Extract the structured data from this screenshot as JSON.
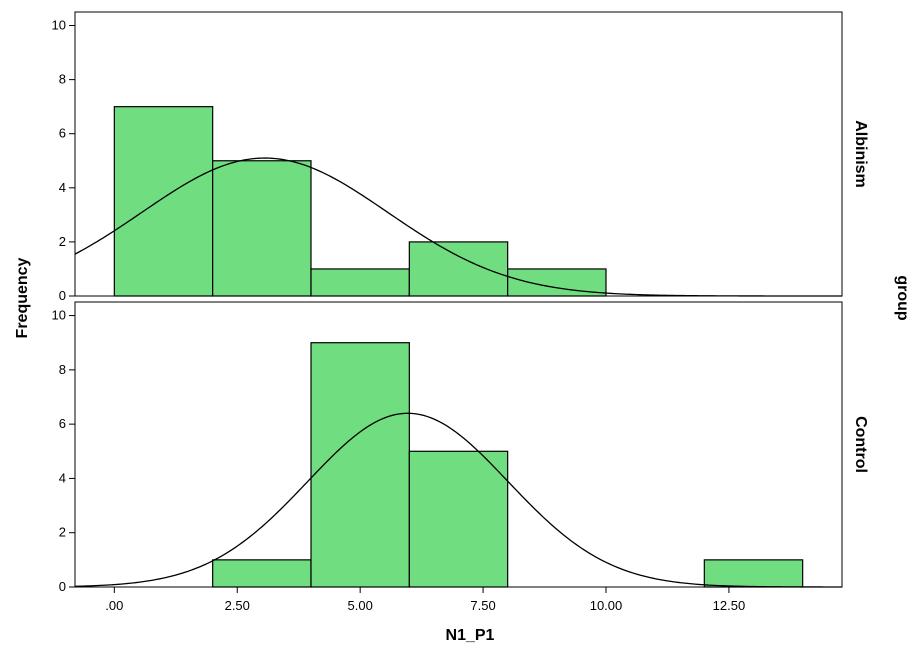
{
  "chart_data": {
    "type": "bar",
    "subtype": "paneled-histogram-with-normal-curve",
    "xlabel": "N1_P1",
    "ylabel": "Frequency",
    "panel_variable_label": "group",
    "xlim": [
      -0.8,
      14.8
    ],
    "ylim": [
      0,
      10.5
    ],
    "x_ticks": [
      0,
      2.5,
      5,
      7.5,
      10,
      12.5
    ],
    "x_tick_labels": [
      ".00",
      "2.50",
      "5.00",
      "7.50",
      "10.00",
      "12.50"
    ],
    "y_ticks": [
      0,
      2,
      4,
      6,
      8,
      10
    ],
    "y_tick_labels": [
      "0",
      "2",
      "4",
      "6",
      "8",
      "10"
    ],
    "bar_color": "#6fdd80",
    "bar_edge_color": "#000000",
    "curve_color": "#000000",
    "grid": false,
    "panels": [
      {
        "name": "Albinism",
        "bins": [
          {
            "start": 0,
            "end": 2,
            "count": 7
          },
          {
            "start": 2,
            "end": 4,
            "count": 5
          },
          {
            "start": 4,
            "end": 6,
            "count": 1
          },
          {
            "start": 6,
            "end": 8,
            "count": 2
          },
          {
            "start": 8,
            "end": 10,
            "count": 1
          }
        ],
        "normal_curve": {
          "mean": 3.06,
          "sd": 2.5,
          "peak": 5.1
        }
      },
      {
        "name": "Control",
        "bins": [
          {
            "start": 2,
            "end": 4,
            "count": 1
          },
          {
            "start": 4,
            "end": 6,
            "count": 9
          },
          {
            "start": 6,
            "end": 8,
            "count": 5
          },
          {
            "start": 12,
            "end": 14,
            "count": 1
          }
        ],
        "normal_curve": {
          "mean": 5.97,
          "sd": 2.04,
          "peak": 6.4
        }
      }
    ]
  }
}
